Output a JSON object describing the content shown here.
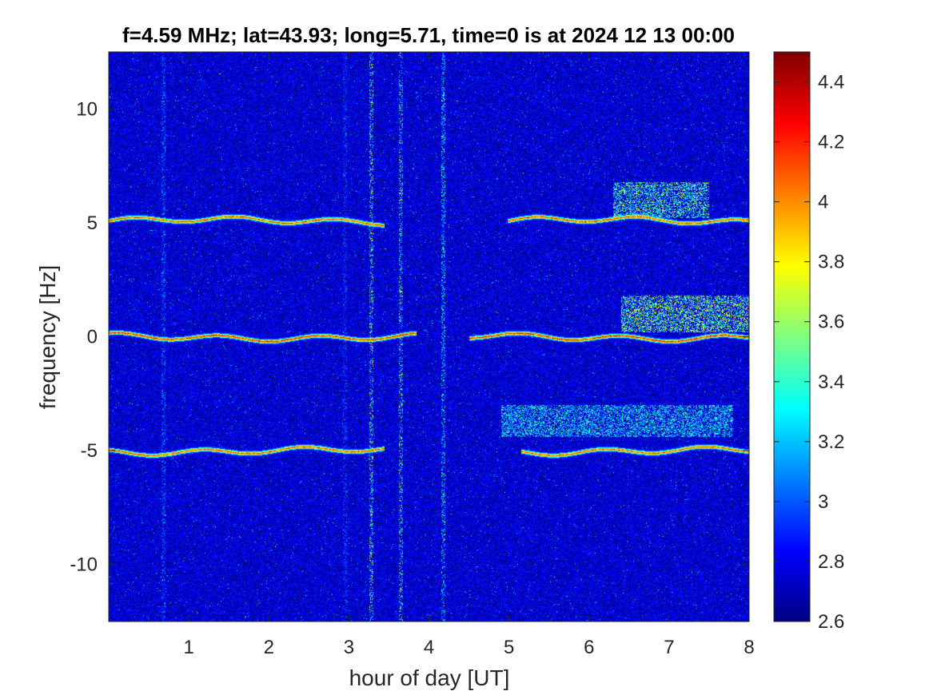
{
  "chart_data": {
    "type": "heatmap",
    "title": "f=4.59 MHz;  lat=43.93; long=5.71, time=0 is at 2024 12 13 00:00",
    "xlabel": "hour of day [UT]",
    "ylabel": "frequency [Hz]",
    "xlim": [
      0,
      8
    ],
    "ylim": [
      -12.5,
      12.5
    ],
    "x_ticks": [
      1,
      2,
      3,
      4,
      5,
      6,
      7,
      8
    ],
    "x_tick_labels": [
      "1",
      "2",
      "3",
      "4",
      "5",
      "6",
      "7",
      "8"
    ],
    "y_ticks": [
      10,
      5,
      0,
      -5,
      -10
    ],
    "y_tick_labels": [
      "10",
      "5",
      "0",
      "-5",
      "-10"
    ],
    "colorbar": {
      "colormap": "jet",
      "limits": [
        2.6,
        4.5
      ],
      "ticks": [
        4.4,
        4.2,
        4.0,
        3.8,
        3.6,
        3.4,
        3.2,
        3.0,
        2.8,
        2.6
      ],
      "tick_labels": [
        "4.4",
        "4.2",
        "4",
        "3.8",
        "3.6",
        "3.4",
        "3.2",
        "3",
        "2.8",
        "2.6"
      ]
    },
    "background_level": 2.75,
    "traces": [
      {
        "freq": 5.1,
        "segments": [
          [
            0,
            3.45
          ],
          [
            4.98,
            8
          ]
        ],
        "level": 4.2
      },
      {
        "freq": 0.0,
        "segments": [
          [
            0,
            3.85
          ],
          [
            4.5,
            8
          ]
        ],
        "level": 4.3
      },
      {
        "freq": -5.0,
        "segments": [
          [
            0,
            3.45
          ],
          [
            5.15,
            8
          ]
        ],
        "level": 4.2
      }
    ],
    "spread_regions": [
      {
        "x": [
          6.3,
          7.5
        ],
        "freq": [
          5.2,
          6.8
        ],
        "level": 3.6
      },
      {
        "x": [
          6.4,
          8.0
        ],
        "freq": [
          0.2,
          1.8
        ],
        "level": 3.7
      },
      {
        "x": [
          4.9,
          7.8
        ],
        "freq": [
          -4.4,
          -3.0
        ],
        "level": 3.4
      }
    ],
    "vertical_lines": [
      {
        "x": 0.68,
        "level": 3.2
      },
      {
        "x": 3.28,
        "level": 3.9
      },
      {
        "x": 3.65,
        "level": 3.8
      },
      {
        "x": 4.17,
        "level": 3.6
      },
      {
        "x": 2.95,
        "level": 3.1
      }
    ],
    "grid": false
  }
}
